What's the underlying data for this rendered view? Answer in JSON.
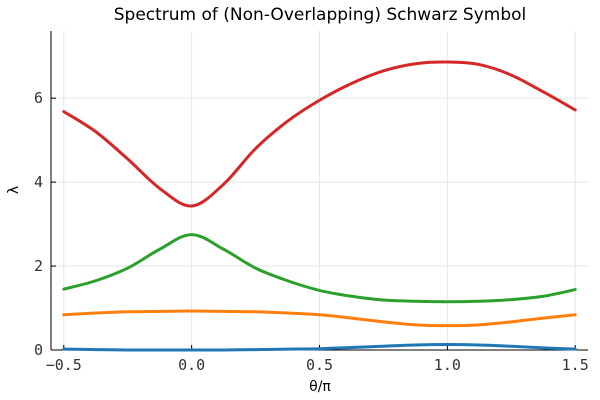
{
  "chart_data": {
    "type": "line",
    "title": "Spectrum of (Non-Overlapping) Schwarz Symbol",
    "xlabel": "θ/π",
    "ylabel": "λ",
    "xlim": [
      -0.55,
      1.55
    ],
    "ylim": [
      0,
      7.6
    ],
    "x_ticks": [
      -0.5,
      0.0,
      0.5,
      1.0,
      1.5
    ],
    "x_tick_labels": [
      "−0.5",
      "0.0",
      "0.5",
      "1.0",
      "1.5"
    ],
    "y_ticks": [
      0,
      2,
      4,
      6
    ],
    "y_tick_labels": [
      "0",
      "2",
      "4",
      "6"
    ],
    "grid": true,
    "legend": "none",
    "x": [
      -0.5,
      -0.375,
      -0.25,
      -0.125,
      0.0,
      0.125,
      0.25,
      0.375,
      0.5,
      0.625,
      0.75,
      0.875,
      1.0,
      1.125,
      1.25,
      1.375,
      1.5
    ],
    "series": [
      {
        "color": "#1f77b4",
        "values": [
          0.02,
          0.01,
          0.0,
          0.0,
          0.0,
          0.0,
          0.01,
          0.02,
          0.03,
          0.06,
          0.09,
          0.12,
          0.13,
          0.12,
          0.09,
          0.05,
          0.02
        ]
      },
      {
        "color": "#ff7f0e",
        "values": [
          0.84,
          0.88,
          0.91,
          0.92,
          0.93,
          0.92,
          0.91,
          0.88,
          0.84,
          0.76,
          0.67,
          0.6,
          0.58,
          0.6,
          0.67,
          0.76,
          0.84
        ]
      },
      {
        "color": "#2ca02c",
        "values": [
          1.45,
          1.65,
          1.95,
          2.4,
          2.75,
          2.4,
          1.95,
          1.65,
          1.42,
          1.28,
          1.19,
          1.16,
          1.15,
          1.16,
          1.2,
          1.28,
          1.44
        ]
      },
      {
        "color": "#d62728",
        "values": [
          5.68,
          5.2,
          4.55,
          3.85,
          3.43,
          3.95,
          4.8,
          5.45,
          5.95,
          6.35,
          6.65,
          6.82,
          6.86,
          6.8,
          6.55,
          6.15,
          5.72
        ]
      }
    ]
  }
}
